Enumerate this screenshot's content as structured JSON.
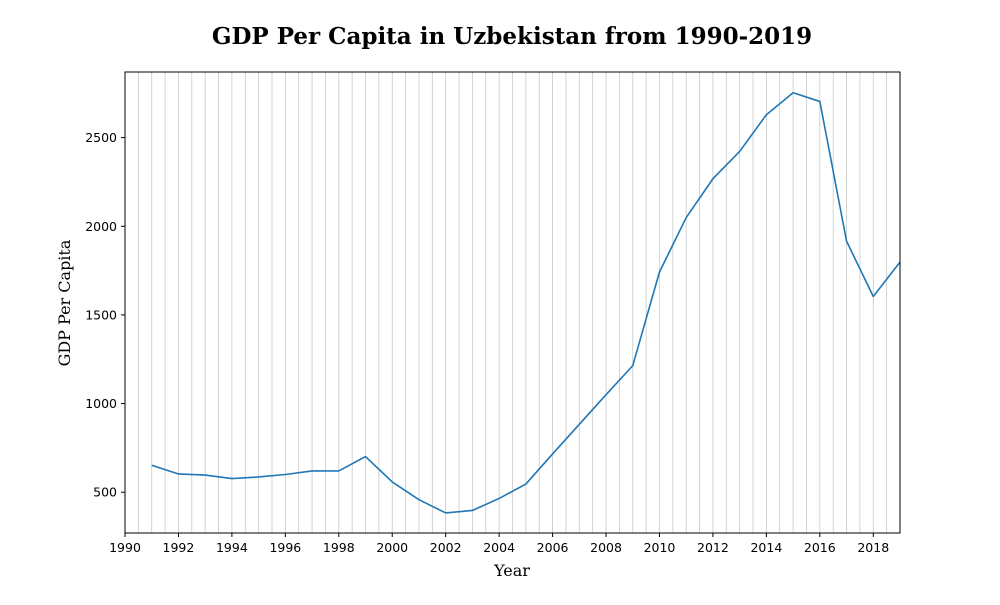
{
  "chart_data": {
    "type": "line",
    "title": "GDP Per Capita in Uzbekistan from 1990-2019",
    "xlabel": "Year",
    "ylabel": "GDP Per Capita",
    "xlim": [
      1990,
      2019
    ],
    "ylim": [
      270,
      2870
    ],
    "x_ticks": [
      1990,
      1992,
      1994,
      1996,
      1998,
      2000,
      2002,
      2004,
      2006,
      2008,
      2010,
      2012,
      2014,
      2016,
      2018
    ],
    "y_ticks": [
      500,
      1000,
      1500,
      2000,
      2500
    ],
    "grid": "vertical",
    "series": [
      {
        "color": "#1f77b4",
        "x": [
          1991,
          1992,
          1993,
          1994,
          1995,
          1996,
          1997,
          1998,
          1999,
          2000,
          2001,
          2002,
          2003,
          2004,
          2005,
          2006,
          2007,
          2008,
          2009,
          2010,
          2011,
          2012,
          2013,
          2014,
          2015,
          2016,
          2017,
          2018,
          2019
        ],
        "y": [
          652,
          603,
          597,
          577,
          586,
          600,
          620,
          620,
          701,
          558,
          458,
          383,
          397,
          465,
          546,
          716,
          883,
          1050,
          1214,
          1742,
          2049,
          2268,
          2422,
          2629,
          2753,
          2704,
          1916,
          1604,
          1798
        ]
      }
    ]
  }
}
